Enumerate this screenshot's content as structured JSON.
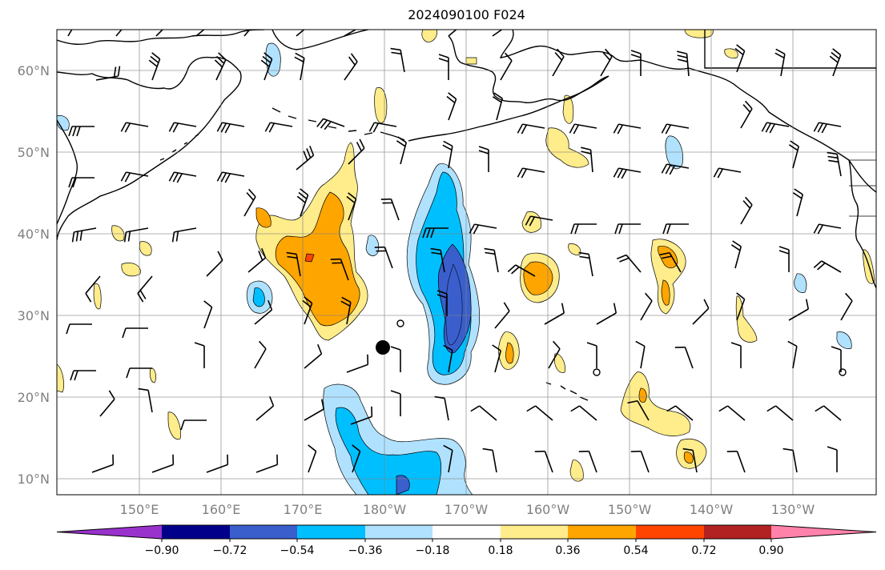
{
  "title": "2024090100 F024",
  "lat_labels": [
    "60°N",
    "50°N",
    "40°N",
    "30°N",
    "20°N",
    "10°N"
  ],
  "lon_labels": [
    "150°E",
    "160°E",
    "170°E",
    "180°W",
    "170°W",
    "160°W",
    "150°W",
    "140°W",
    "130°W"
  ],
  "colorbar": {
    "ticks": [
      "−0.90",
      "−0.72",
      "−0.54",
      "−0.36",
      "−0.18",
      "0.18",
      "0.36",
      "0.54",
      "0.72",
      "0.90"
    ],
    "colors": [
      "#9932CC",
      "#00008B",
      "#3A5FCD",
      "#00BFFF",
      "#B0E2FF",
      "#FFFFFF",
      "#FFEC8B",
      "#FFA500",
      "#FF4500",
      "#B22222",
      "#FF82AB"
    ]
  },
  "colors": {
    "grid": "#808080",
    "coast": "#000000",
    "land_fill": "#FFFFFF"
  },
  "markers": {
    "filled_dot": "filled-circle",
    "open_circles": "open-circle"
  }
}
